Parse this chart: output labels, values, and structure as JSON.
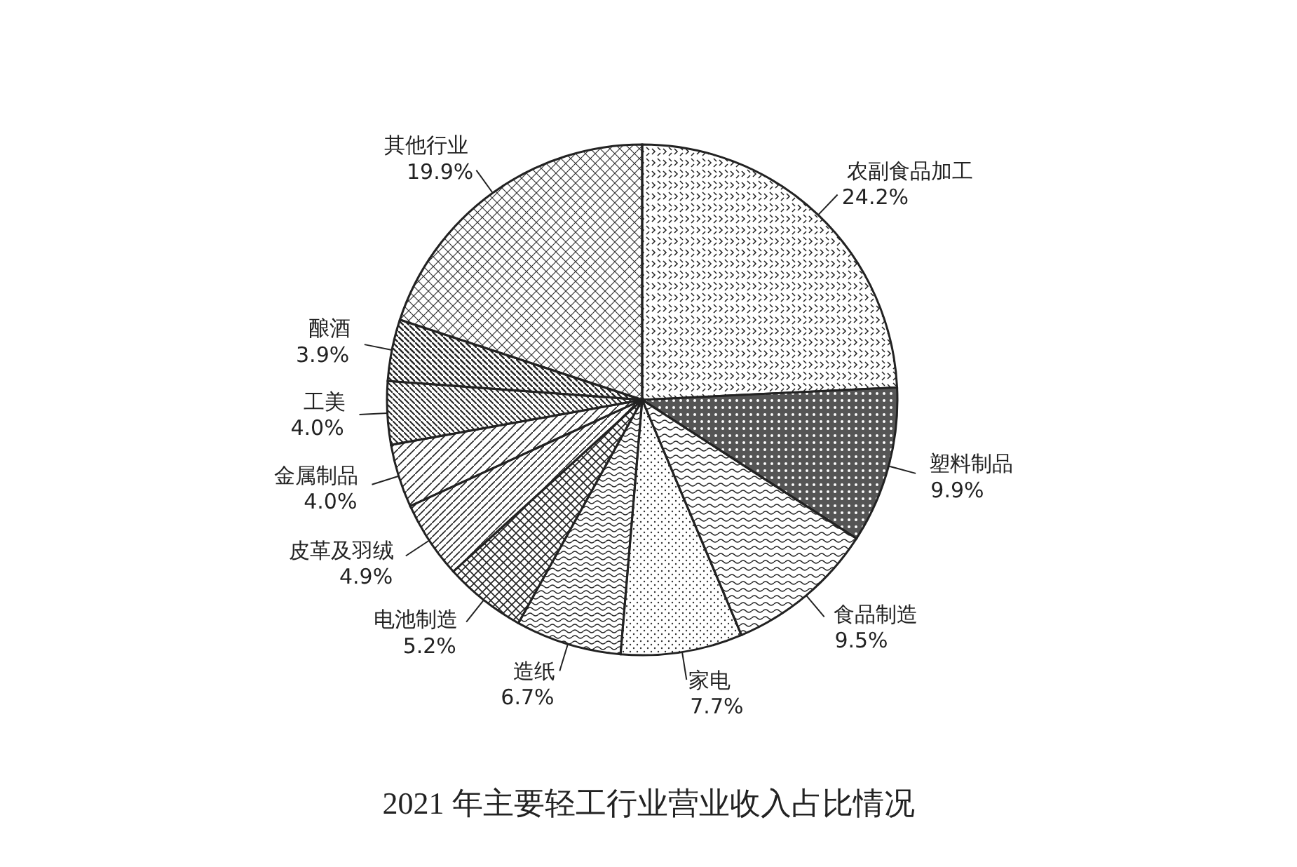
{
  "chart_data": {
    "type": "pie",
    "title": "2021 年主要轻工行业营业收入占比情况",
    "categories": [
      "农副食品加工",
      "塑料制品",
      "食品制造",
      "家电",
      "造纸",
      "电池制造",
      "皮革及羽绒",
      "金属制品",
      "工美",
      "酿酒",
      "其他行业"
    ],
    "values": [
      24.2,
      9.9,
      9.5,
      7.7,
      6.7,
      5.2,
      4.9,
      4.0,
      4.0,
      3.9,
      19.9
    ],
    "value_labels": [
      "24.2%",
      "9.9%",
      "9.5%",
      "7.7%",
      "6.7%",
      "5.2%",
      "4.9%",
      "4.0%",
      "4.0%",
      "3.9%",
      "19.9%"
    ]
  }
}
